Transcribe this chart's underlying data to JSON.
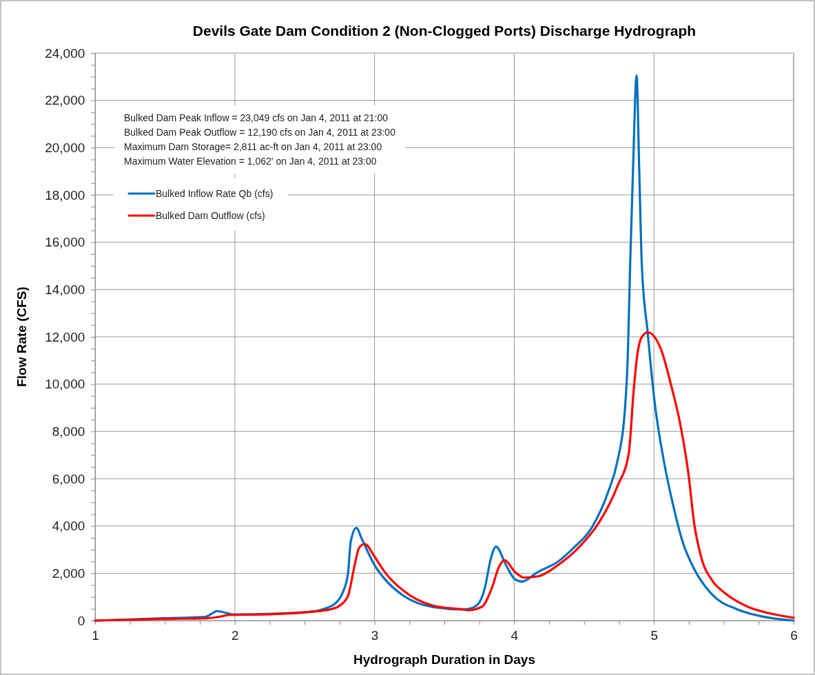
{
  "chart_data": {
    "type": "line",
    "title": "Devils Gate Dam Condition 2 (Non-Clogged Ports) Discharge Hydrograph",
    "xlabel": "Hydrograph Duration in Days",
    "ylabel": "Flow Rate (CFS)",
    "annotations": [
      "Bulked Dam Peak Inflow = 23,049 cfs on Jan 4, 2011 at 21:00",
      "Bulked Dam Peak Outflow = 12,190 cfs on Jan 4, 2011 at 23:00",
      "Maximum Dam Storage= 2,811 ac-ft on Jan 4, 2011 at 23:00",
      "Maximum Water Elevation = 1,062' on Jan 4, 2011 at 23:00"
    ],
    "xlim": [
      1,
      6
    ],
    "xticks": [
      1,
      {
        "value": 1.25,
        "label": null
      },
      {
        "value": 1.5,
        "label": null
      },
      {
        "value": 1.75,
        "label": null
      },
      2,
      {
        "value": 2.25,
        "label": null
      },
      {
        "value": 2.5,
        "label": null
      },
      {
        "value": 2.75,
        "label": null
      },
      3,
      {
        "value": 3.25,
        "label": null
      },
      {
        "value": 3.5,
        "label": null
      },
      {
        "value": 3.75,
        "label": null
      },
      4,
      {
        "value": 4.25,
        "label": null
      },
      {
        "value": 4.5,
        "label": null
      },
      {
        "value": 4.75,
        "label": null
      },
      5,
      {
        "value": 5.25,
        "label": null
      },
      {
        "value": 5.5,
        "label": null
      },
      {
        "value": 5.75,
        "label": null
      },
      6
    ],
    "ylim": [
      0,
      24000
    ],
    "yticks": [
      0,
      {
        "value": 500,
        "label": null
      },
      {
        "value": 1000,
        "label": null
      },
      {
        "value": 1500,
        "label": null
      },
      {
        "value": 2000,
        "label": "2,000"
      },
      {
        "value": 2500,
        "label": null
      },
      {
        "value": 3000,
        "label": null
      },
      {
        "value": 3500,
        "label": null
      },
      {
        "value": 4000,
        "label": "4,000"
      },
      {
        "value": 4500,
        "label": null
      },
      {
        "value": 5000,
        "label": null
      },
      {
        "value": 5500,
        "label": null
      },
      {
        "value": 6000,
        "label": "6,000"
      },
      {
        "value": 6500,
        "label": null
      },
      {
        "value": 7000,
        "label": null
      },
      {
        "value": 7500,
        "label": null
      },
      {
        "value": 8000,
        "label": "8,000"
      },
      {
        "value": 8500,
        "label": null
      },
      {
        "value": 9000,
        "label": null
      },
      {
        "value": 9500,
        "label": null
      },
      {
        "value": 10000,
        "label": "10,000"
      },
      {
        "value": 10500,
        "label": null
      },
      {
        "value": 11000,
        "label": null
      },
      {
        "value": 11500,
        "label": null
      },
      {
        "value": 12000,
        "label": "12,000"
      },
      {
        "value": 12500,
        "label": null
      },
      {
        "value": 13000,
        "label": null
      },
      {
        "value": 13500,
        "label": null
      },
      {
        "value": 14000,
        "label": "14,000"
      },
      {
        "value": 14500,
        "label": null
      },
      {
        "value": 15000,
        "label": null
      },
      {
        "value": 15500,
        "label": null
      },
      {
        "value": 16000,
        "label": "16,000"
      },
      {
        "value": 16500,
        "label": null
      },
      {
        "value": 17000,
        "label": null
      },
      {
        "value": 17500,
        "label": null
      },
      {
        "value": 18000,
        "label": "18,000"
      },
      {
        "value": 18500,
        "label": null
      },
      {
        "value": 19000,
        "label": null
      },
      {
        "value": 19500,
        "label": null
      },
      {
        "value": 20000,
        "label": "20,000"
      },
      {
        "value": 20500,
        "label": null
      },
      {
        "value": 21000,
        "label": null
      },
      {
        "value": 21500,
        "label": null
      },
      {
        "value": 22000,
        "label": "22,000"
      },
      {
        "value": 22500,
        "label": null
      },
      {
        "value": 23000,
        "label": null
      },
      {
        "value": 23500,
        "label": null
      },
      {
        "value": 24000,
        "label": "24,000"
      }
    ],
    "grid": true,
    "legend": "top left",
    "marker": "none",
    "line_style": "solid",
    "series": [
      {
        "name": "Bulked Inflow Rate Qb (cfs)",
        "color": "#0070c0",
        "x": [
          1,
          1.49,
          1.79,
          1.84,
          1.87,
          2.0,
          2.54,
          2.65,
          2.72,
          2.77,
          2.81,
          2.83,
          2.87,
          2.91,
          3.0,
          3.07,
          3.21,
          3.42,
          3.63,
          3.67,
          3.74,
          3.79,
          3.83,
          3.87,
          3.94,
          4.005,
          4.055,
          4.17,
          4.305,
          4.42,
          4.555,
          4.67,
          4.74,
          4.79,
          4.813,
          4.83,
          4.85,
          4.876,
          4.895,
          4.913,
          4.955,
          5.005,
          5.07,
          5.14,
          5.205,
          5.29,
          5.42,
          5.59,
          5.755,
          6.0
        ],
        "values": [
          0,
          100,
          160,
          310,
          400,
          260,
          370,
          520,
          730,
          1150,
          1980,
          3340,
          3920,
          3440,
          2350,
          1780,
          1040,
          570,
          470,
          490,
          690,
          1380,
          2560,
          3130,
          2360,
          1750,
          1650,
          2060,
          2460,
          3050,
          3930,
          5400,
          6780,
          8750,
          11200,
          15100,
          19000,
          23049,
          19000,
          15100,
          12190,
          9240,
          6780,
          4820,
          3340,
          2160,
          1080,
          490,
          200,
          0
        ]
      },
      {
        "name": "Bulked Dam Outflow (cfs)",
        "color": "#ff0000",
        "x": [
          1,
          1.49,
          1.8,
          1.89,
          1.96,
          2.19,
          2.54,
          2.68,
          2.75,
          2.81,
          2.86,
          2.89,
          2.93,
          3.0,
          3.07,
          3.21,
          3.42,
          3.63,
          3.67,
          3.77,
          3.84,
          3.89,
          3.93,
          4.005,
          4.07,
          4.17,
          4.305,
          4.47,
          4.605,
          4.74,
          4.82,
          4.855,
          4.88,
          4.913,
          4.955,
          5.055,
          5.12,
          5.19,
          5.245,
          5.29,
          5.34,
          5.42,
          5.505,
          5.67,
          5.84,
          6.0
        ],
        "values": [
          0,
          70,
          100,
          160,
          240,
          260,
          370,
          470,
          630,
          1040,
          2400,
          3080,
          3240,
          2710,
          2080,
          1250,
          630,
          470,
          440,
          590,
          1380,
          2260,
          2560,
          2060,
          1820,
          1870,
          2310,
          3140,
          4130,
          5700,
          7080,
          9730,
          11200,
          11990,
          12190,
          11400,
          10020,
          8260,
          6290,
          4030,
          2650,
          1670,
          1180,
          590,
          290,
          120
        ]
      }
    ]
  }
}
